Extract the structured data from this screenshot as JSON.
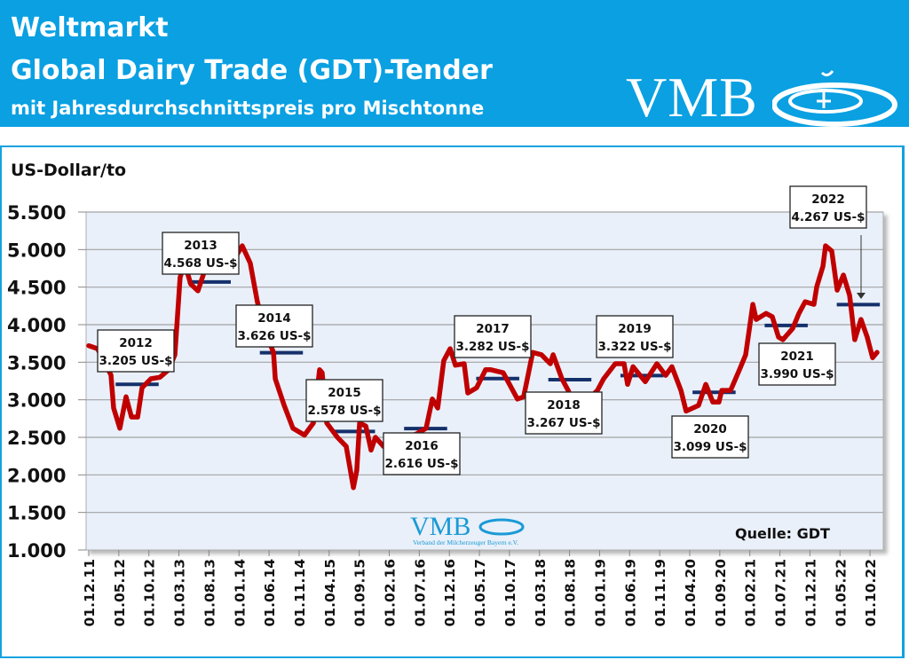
{
  "header": {
    "line1": "Weltmarkt",
    "line2": "Global Dairy Trade (GDT)-Tender",
    "line3": "mit Jahresdurchschnittspreis pro Mischtonne",
    "logo_text": "VMB",
    "background_color": "#0aa0e2"
  },
  "watermark": {
    "logo_text": "VMB",
    "tagline": "Verband der Milcherzeuger Bayern e.V."
  },
  "chart_data": {
    "type": "line",
    "title": "Global Dairy Trade (GDT)-Tender",
    "ylabel": "US-Dollar/to",
    "source": "Quelle: GDT",
    "ylim": [
      1000,
      5500
    ],
    "y_ticks": [
      "1.000",
      "1.500",
      "2.000",
      "2.500",
      "3.000",
      "3.500",
      "4.000",
      "4.500",
      "5.000",
      "5.500"
    ],
    "y_tick_values": [
      1000,
      1500,
      2000,
      2500,
      3000,
      3500,
      4000,
      4500,
      5000,
      5500
    ],
    "x_ticks": [
      "01.12.11",
      "01.05.12",
      "01.10.12",
      "01.03.13",
      "01.08.13",
      "01.01.14",
      "01.06.14",
      "01.11.14",
      "01.04.15",
      "01.09.15",
      "01.02.16",
      "01.07.16",
      "01.12.16",
      "01.05.17",
      "01.10.17",
      "01.03.18",
      "01.08.18",
      "01.01.19",
      "01.06.19",
      "01.11.19",
      "01.04.20",
      "01.09.20",
      "01.02.21",
      "01.07.21",
      "01.12.21",
      "01.05.22",
      "01.10.22"
    ],
    "grid": true,
    "series_color": "#c00000",
    "average_color": "#14306b",
    "series": [
      {
        "points": [
          [
            "2011-12-01",
            3720
          ],
          [
            "2012-01-15",
            3680
          ],
          [
            "2012-03-22",
            3330
          ],
          [
            "2012-04-05",
            2890
          ],
          [
            "2012-05-06",
            2620
          ],
          [
            "2012-06-07",
            3040
          ],
          [
            "2012-07-04",
            2770
          ],
          [
            "2012-08-05",
            2770
          ],
          [
            "2012-08-27",
            3160
          ],
          [
            "2012-10-11",
            3280
          ],
          [
            "2012-11-26",
            3300
          ],
          [
            "2013-01-10",
            3400
          ],
          [
            "2013-02-11",
            3600
          ],
          [
            "2013-03-07",
            4630
          ],
          [
            "2013-03-29",
            4820
          ],
          [
            "2013-04-30",
            4540
          ],
          [
            "2013-06-06",
            4450
          ],
          [
            "2013-07-07",
            4700
          ],
          [
            "2013-11-07",
            4740
          ],
          [
            "2014-01-17",
            5050
          ],
          [
            "2014-02-27",
            4820
          ],
          [
            "2014-04-03",
            4300
          ],
          [
            "2014-05-17",
            3870
          ],
          [
            "2014-06-23",
            3630
          ],
          [
            "2014-07-02",
            3280
          ],
          [
            "2014-08-16",
            2930
          ],
          [
            "2014-09-30",
            2620
          ],
          [
            "2014-11-28",
            2530
          ],
          [
            "2015-01-12",
            2690
          ],
          [
            "2015-02-13",
            3400
          ],
          [
            "2015-02-26",
            3360
          ],
          [
            "2015-03-19",
            2690
          ],
          [
            "2015-05-12",
            2500
          ],
          [
            "2015-06-26",
            2380
          ],
          [
            "2015-08-02",
            1830
          ],
          [
            "2015-08-19",
            2060
          ],
          [
            "2015-09-03",
            2690
          ],
          [
            "2015-10-04",
            2650
          ],
          [
            "2015-10-30",
            2330
          ],
          [
            "2015-11-22",
            2500
          ],
          [
            "2016-01-02",
            2380
          ],
          [
            "2016-03-22",
            2450
          ],
          [
            "2016-06-20",
            2550
          ],
          [
            "2016-08-05",
            2620
          ],
          [
            "2016-09-06",
            3010
          ],
          [
            "2016-10-03",
            2890
          ],
          [
            "2016-11-03",
            3520
          ],
          [
            "2016-12-05",
            3680
          ],
          [
            "2017-01-01",
            3460
          ],
          [
            "2017-02-15",
            3480
          ],
          [
            "2017-03-03",
            3090
          ],
          [
            "2017-04-17",
            3160
          ],
          [
            "2017-06-02",
            3400
          ],
          [
            "2017-06-28",
            3400
          ],
          [
            "2017-08-30",
            3360
          ],
          [
            "2017-11-11",
            3010
          ],
          [
            "2017-12-12",
            3040
          ],
          [
            "2018-01-27",
            3630
          ],
          [
            "2018-03-11",
            3600
          ],
          [
            "2018-04-25",
            3480
          ],
          [
            "2018-05-09",
            3600
          ],
          [
            "2018-06-23",
            3280
          ],
          [
            "2018-07-24",
            3125
          ],
          [
            "2018-08-07",
            3040
          ],
          [
            "2018-10-13",
            2950
          ],
          [
            "2018-12-20",
            3125
          ],
          [
            "2019-01-21",
            3280
          ],
          [
            "2019-03-19",
            3480
          ],
          [
            "2019-05-03",
            3480
          ],
          [
            "2019-05-21",
            3205
          ],
          [
            "2019-06-18",
            3440
          ],
          [
            "2019-08-19",
            3240
          ],
          [
            "2019-10-17",
            3480
          ],
          [
            "2019-12-01",
            3325
          ],
          [
            "2020-01-02",
            3440
          ],
          [
            "2020-02-17",
            3125
          ],
          [
            "2020-03-13",
            2850
          ],
          [
            "2020-05-15",
            2925
          ],
          [
            "2020-06-21",
            3205
          ],
          [
            "2020-07-26",
            2970
          ],
          [
            "2020-08-27",
            2970
          ],
          [
            "2020-09-11",
            3125
          ],
          [
            "2020-10-25",
            3125
          ],
          [
            "2020-12-09",
            3400
          ],
          [
            "2021-01-10",
            3600
          ],
          [
            "2021-02-16",
            4270
          ],
          [
            "2021-03-03",
            4070
          ],
          [
            "2021-04-22",
            4150
          ],
          [
            "2021-05-23",
            4105
          ],
          [
            "2021-06-24",
            3835
          ],
          [
            "2021-07-16",
            3800
          ],
          [
            "2021-09-05",
            3950
          ],
          [
            "2021-10-06",
            4150
          ],
          [
            "2021-11-07",
            4305
          ],
          [
            "2021-12-21",
            4270
          ],
          [
            "2022-01-05",
            4505
          ],
          [
            "2022-02-06",
            4780
          ],
          [
            "2022-02-19",
            5050
          ],
          [
            "2022-03-20",
            4980
          ],
          [
            "2022-04-17",
            4460
          ],
          [
            "2022-05-18",
            4660
          ],
          [
            "2022-06-19",
            4390
          ],
          [
            "2022-07-15",
            3800
          ],
          [
            "2022-08-16",
            4070
          ],
          [
            "2022-09-17",
            3835
          ],
          [
            "2022-10-14",
            3560
          ],
          [
            "2022-11-06",
            3630
          ]
        ]
      }
    ],
    "annual_averages": [
      {
        "year": "2012",
        "value": 3205,
        "label": "3.205 US-$"
      },
      {
        "year": "2013",
        "value": 4568,
        "label": "4.568 US-$"
      },
      {
        "year": "2014",
        "value": 3626,
        "label": "3.626 US-$"
      },
      {
        "year": "2015",
        "value": 2578,
        "label": "2.578 US-$"
      },
      {
        "year": "2016",
        "value": 2616,
        "label": "2.616 US-$"
      },
      {
        "year": "2017",
        "value": 3282,
        "label": "3.282 US-$"
      },
      {
        "year": "2018",
        "value": 3267,
        "label": "3.267 US-$"
      },
      {
        "year": "2019",
        "value": 3322,
        "label": "3.322 US-$"
      },
      {
        "year": "2020",
        "value": 3099,
        "label": "3.099 US-$"
      },
      {
        "year": "2021",
        "value": 3990,
        "label": "3.990 US-$"
      },
      {
        "year": "2022",
        "value": 4267,
        "label": "4.267 US-$"
      }
    ]
  }
}
